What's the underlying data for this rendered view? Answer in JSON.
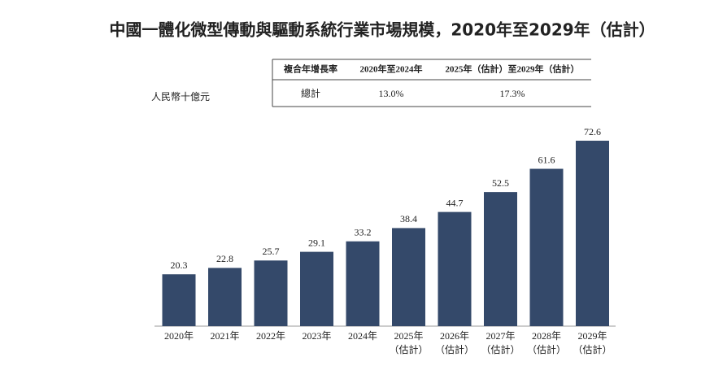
{
  "chart_data": {
    "type": "bar",
    "title": "中國一體化微型傳動與驅動系統行業市場規模，2020年至2029年（估計）",
    "y_label": "人民幣十億元",
    "table": {
      "header": [
        "複合年增長率",
        "2020年至2024年",
        "2025年（估計）至2029年（估計）"
      ],
      "rows": [
        [
          "總計",
          "13.0%",
          "17.3%"
        ]
      ]
    },
    "categories": [
      [
        "2020年"
      ],
      [
        "2021年"
      ],
      [
        "2022年"
      ],
      [
        "2023年"
      ],
      [
        "2024年"
      ],
      [
        "2025年",
        "（估計）"
      ],
      [
        "2026年",
        "（估計）"
      ],
      [
        "2027年",
        "（估計）"
      ],
      [
        "2028年",
        "（估計）"
      ],
      [
        "2029年",
        "（估計）"
      ]
    ],
    "values": [
      20.3,
      22.8,
      25.7,
      29.1,
      33.2,
      38.4,
      44.7,
      52.5,
      61.6,
      72.6
    ],
    "color": "#34496a"
  }
}
